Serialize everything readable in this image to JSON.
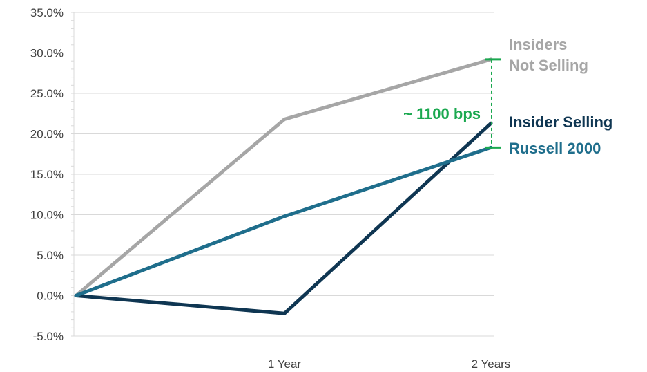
{
  "chart_data": {
    "type": "line",
    "title": "",
    "xlabel": "",
    "ylabel": "",
    "categories": [
      "",
      "1 Year",
      "2 Years"
    ],
    "ylim": [
      -5,
      35
    ],
    "ytick_step": 5,
    "ytick_suffix": "%",
    "ytick_decimals": 1,
    "grid": "horizontal",
    "legend": "direct labels at right end of lines",
    "series": [
      {
        "name": "Insiders Not Selling",
        "label_lines": [
          "Insiders",
          "Not Selling"
        ],
        "values": [
          0,
          21.8,
          29.2
        ],
        "color": "#a6a6a6"
      },
      {
        "name": "Insider Selling",
        "label_lines": [
          "Insider Selling"
        ],
        "values": [
          0,
          -2.2,
          21.3
        ],
        "color": "#0f3652"
      },
      {
        "name": "Russell 2000",
        "label_lines": [
          "Russell 2000"
        ],
        "values": [
          0,
          9.8,
          18.3
        ],
        "color": "#1f6e8c"
      }
    ],
    "annotation": {
      "text": "~ 1100 bps",
      "from_value": 29.2,
      "to_value": 18.3,
      "color": "#1aa84f"
    }
  }
}
